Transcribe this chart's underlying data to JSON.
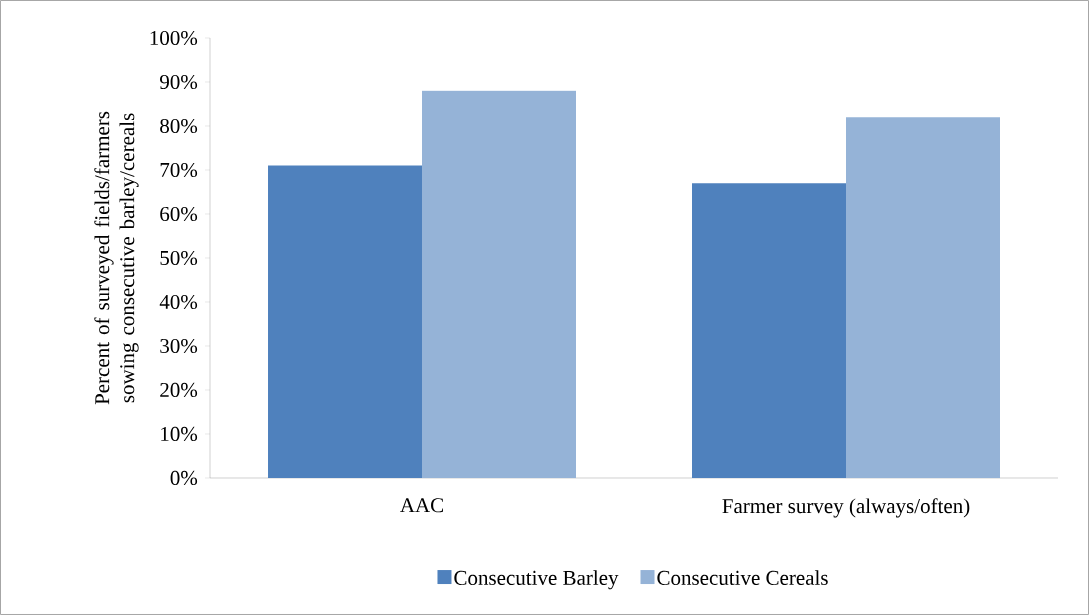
{
  "chart_data": {
    "type": "bar",
    "ylabel": "Percent of surveyed fields/farmers sowing consecutive barley/cereals",
    "categories": [
      "AAC",
      "Farmer survey (always/often)"
    ],
    "series": [
      {
        "name": "Consecutive Barley",
        "color": "#4f81bd",
        "values": [
          71,
          67
        ]
      },
      {
        "name": "Consecutive Cereals",
        "color": "#95b3d7",
        "values": [
          88,
          82
        ]
      }
    ],
    "ylim": [
      0,
      100
    ],
    "yticks": [
      {
        "value": 0,
        "label": "0%"
      },
      {
        "value": 10,
        "label": "10%"
      },
      {
        "value": 20,
        "label": "20%"
      },
      {
        "value": 30,
        "label": "30%"
      },
      {
        "value": 40,
        "label": "40%"
      },
      {
        "value": 50,
        "label": "50%"
      },
      {
        "value": 60,
        "label": "60%"
      },
      {
        "value": 70,
        "label": "70%"
      },
      {
        "value": 80,
        "label": "80%"
      },
      {
        "value": 90,
        "label": "90%"
      },
      {
        "value": 100,
        "label": "100%"
      }
    ],
    "grid": false,
    "legend": "bottom"
  }
}
